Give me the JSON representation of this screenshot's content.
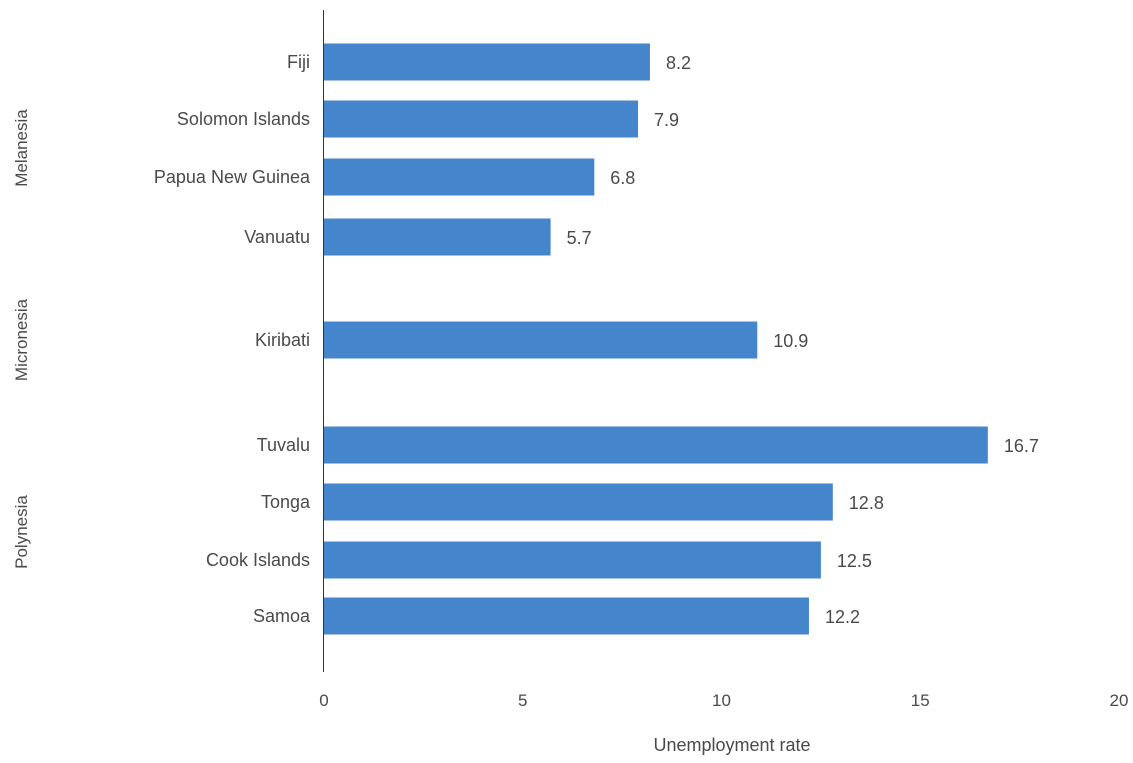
{
  "chart_data": {
    "type": "bar",
    "orientation": "horizontal",
    "xlabel": "Unemployment rate",
    "xlim": [
      0,
      20
    ],
    "xticks": [
      0,
      5,
      10,
      15,
      20
    ],
    "grid": false,
    "legend": "none",
    "colors": {
      "bar": "#4585cb",
      "text": "#4a4a4a",
      "axis": "#333333"
    },
    "groups": [
      {
        "name": "Melanesia",
        "categories": [
          "Fiji",
          "Solomon Islands",
          "Papua New Guinea",
          "Vanuatu"
        ]
      },
      {
        "name": "Micronesia",
        "categories": [
          "Kiribati"
        ]
      },
      {
        "name": "Polynesia",
        "categories": [
          "Tuvalu",
          "Tonga",
          "Cook Islands",
          "Samoa"
        ]
      }
    ],
    "categories": [
      "Fiji",
      "Solomon Islands",
      "Papua New Guinea",
      "Vanuatu",
      "Kiribati",
      "Tuvalu",
      "Tonga",
      "Cook Islands",
      "Samoa"
    ],
    "values": [
      8.2,
      7.9,
      6.8,
      5.7,
      10.9,
      16.7,
      12.8,
      12.5,
      12.2
    ],
    "value_labels": [
      "8.2",
      "7.9",
      "6.8",
      "5.7",
      "10.9",
      "16.7",
      "12.8",
      "12.5",
      "12.2"
    ]
  }
}
